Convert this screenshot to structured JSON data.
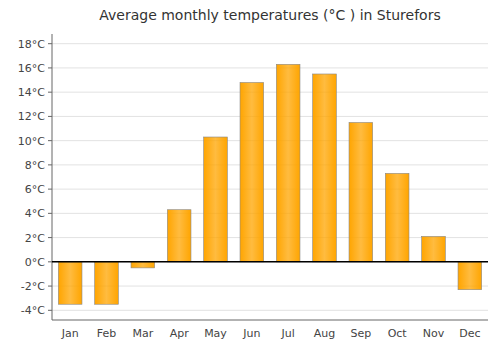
{
  "chart_data": {
    "type": "bar",
    "title": "Average monthly temperatures (°C ) in Sturefors",
    "categories": [
      "Jan",
      "Feb",
      "Mar",
      "Apr",
      "May",
      "Jun",
      "Jul",
      "Aug",
      "Sep",
      "Oct",
      "Nov",
      "Dec"
    ],
    "values": [
      -3.5,
      -3.5,
      -0.5,
      4.3,
      10.3,
      14.8,
      16.3,
      15.5,
      11.5,
      7.3,
      2.1,
      -2.3
    ],
    "color": "#FFA500",
    "ylim": [
      -4.8,
      18.8
    ],
    "yticks": [
      {
        "value": -4,
        "label": "-4°C"
      },
      {
        "value": -2,
        "label": "-2°C"
      },
      {
        "value": 0,
        "label": "0°C"
      },
      {
        "value": 2,
        "label": "2°C"
      },
      {
        "value": 4,
        "label": "4°C"
      },
      {
        "value": 6,
        "label": "6°C"
      },
      {
        "value": 8,
        "label": "8°C"
      },
      {
        "value": 10,
        "label": "10°C"
      },
      {
        "value": 12,
        "label": "12°C"
      },
      {
        "value": 14,
        "label": "14°C"
      },
      {
        "value": 16,
        "label": "16°C"
      },
      {
        "value": 18,
        "label": "18°C"
      }
    ],
    "grid": true
  }
}
